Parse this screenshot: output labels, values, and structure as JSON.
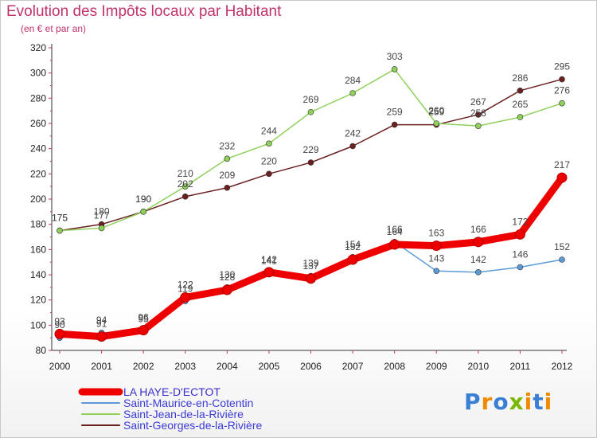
{
  "chart_data": {
    "type": "line",
    "title": "Evolution des Impôts locaux par Habitant",
    "subtitle": "(en € et par an)",
    "x": [
      "2000",
      "2001",
      "2002",
      "2003",
      "2004",
      "2005",
      "2006",
      "2007",
      "2008",
      "2009",
      "2010",
      "2011",
      "2012"
    ],
    "ylim": [
      80,
      320
    ],
    "yticks": [
      80,
      100,
      120,
      140,
      160,
      180,
      200,
      220,
      240,
      260,
      280,
      300,
      320
    ],
    "grid": false,
    "legend": "bottom-left",
    "series": [
      {
        "name": "LA HAYE-D'ECTOT",
        "color": "#ee0000",
        "values": [
          93,
          91,
          96,
          122,
          128,
          142,
          137,
          152,
          164,
          163,
          166,
          172,
          217
        ]
      },
      {
        "name": "Saint-Maurice-en-Cotentin",
        "color": "#5b9bd5",
        "values": [
          90,
          94,
          95,
          119,
          130,
          141,
          139,
          154,
          166,
          143,
          142,
          146,
          152
        ]
      },
      {
        "name": "Saint-Jean-de-la-Rivière",
        "color": "#8ed05a",
        "values": [
          175,
          177,
          190,
          210,
          232,
          244,
          269,
          284,
          303,
          260,
          258,
          265,
          276
        ]
      },
      {
        "name": "Saint-Georges-de-la-Rivière",
        "color": "#6b1f1f",
        "values": [
          175,
          180,
          190,
          202,
          209,
          220,
          229,
          242,
          259,
          259,
          267,
          286,
          295
        ]
      }
    ]
  },
  "logo": {
    "text": "Proxiti",
    "letters": [
      "P",
      "r",
      "o",
      "x",
      "i",
      "t",
      "i"
    ],
    "colors": [
      "#3a7fd6",
      "#f08a00",
      "#3a7fd6",
      "#7ab800",
      "#f08a00",
      "#3a7fd6",
      "#f08a00"
    ]
  }
}
